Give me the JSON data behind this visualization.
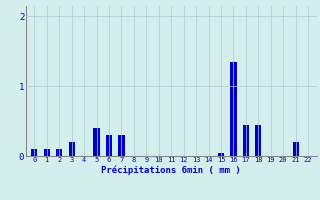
{
  "categories": [
    0,
    1,
    2,
    3,
    4,
    5,
    6,
    7,
    8,
    9,
    10,
    11,
    12,
    13,
    14,
    15,
    16,
    17,
    18,
    19,
    20,
    21,
    22
  ],
  "values": [
    0.1,
    0.1,
    0.1,
    0.2,
    0.0,
    0.4,
    0.3,
    0.3,
    0.0,
    0.0,
    0.0,
    0.0,
    0.0,
    0.0,
    0.0,
    0.05,
    1.35,
    0.45,
    0.45,
    0.0,
    0.0,
    0.2,
    0.0
  ],
  "bar_color": "#0000cc",
  "bg_color": "#d4eeed",
  "grid_color": "#aacccc",
  "xlabel": "Précipitations 6min ( mm )",
  "xlabel_color": "#0000cc",
  "tick_color": "#0000cc",
  "yticks": [
    0,
    1,
    2
  ],
  "ylim": [
    0,
    2.15
  ],
  "xlim": [
    -0.7,
    22.7
  ],
  "figsize": [
    3.2,
    2.0
  ],
  "dpi": 100
}
